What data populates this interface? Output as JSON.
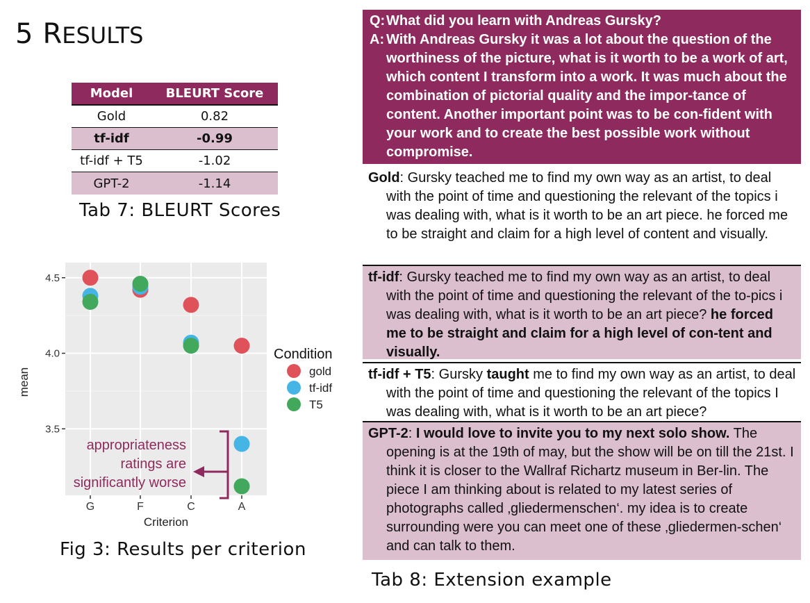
{
  "section": {
    "number": "5",
    "title_first": "R",
    "title_rest": "ESULTS"
  },
  "table7": {
    "headers": [
      "Model",
      "BLEURT Score"
    ],
    "rows": [
      {
        "model": "Gold",
        "score": "0.82"
      },
      {
        "model": "tf-idf",
        "score": "-0.99"
      },
      {
        "model": "tf-idf + T5",
        "score": "-1.02"
      },
      {
        "model": "GPT-2",
        "score": "-1.14"
      }
    ],
    "caption": "Tab 7: BLEURT Scores"
  },
  "figure3": {
    "caption": "Fig 3: Results per criterion",
    "annotation": [
      "appropriateness",
      "ratings are",
      "significantly worse"
    ]
  },
  "chart_data": {
    "type": "scatter",
    "categories": [
      "G",
      "F",
      "C",
      "A"
    ],
    "xlabel": "Criterion",
    "ylabel": "mean",
    "yticks": [
      "3.5",
      "4.0",
      "4.5"
    ],
    "ylim": [
      3.06,
      4.6
    ],
    "legend_title": "Condition",
    "legend_position": "right",
    "grid": true,
    "series": [
      {
        "name": "gold",
        "color": "#e0525a",
        "values": [
          4.5,
          4.42,
          4.32,
          4.05
        ]
      },
      {
        "name": "tf-idf",
        "color": "#45b5e6",
        "values": [
          4.38,
          4.44,
          4.07,
          3.4
        ]
      },
      {
        "name": "T5",
        "color": "#41a85c",
        "values": [
          4.34,
          4.46,
          4.05,
          3.12
        ]
      }
    ]
  },
  "qa": {
    "q_label": "Q:",
    "q_text": "What did you learn with Andreas Gursky?",
    "a_label": "A:",
    "a_text": "With Andreas Gursky it was a lot about the question of the worthiness of the picture, what is it worth to be a work of art, which content I transform into a work. It was much about the combination of pictorial quality and the impor-tance of content. Another important point was to be con-fident with your work and to create the best possible work without compromise."
  },
  "responses": {
    "gold": {
      "label": "Gold",
      "text": ": Gursky teached me to find my own way as an artist, to deal with the point of time and questioning the relevant of the topics i was dealing with, what is it worth to be an art piece. he forced me to be straight and claim for a high level of content and visually."
    },
    "tfidf": {
      "label": "tf-idf",
      "text": ": Gursky teached me to find my own way as an artist, to deal with the point of time and questioning the relevant of the to-pics i was dealing with, what is it worth to be an art piece? ",
      "bold_text": "he forced me to be straight and claim for a high level of con-tent and visually."
    },
    "t5": {
      "label": "tf-idf + T5",
      "text_a": ": Gursky ",
      "bold_word": "taught",
      "text_b": " me to find my own way as an artist, to deal with the point of time and questioning the relevant of the topics I was dealing with, what is it worth to be an art piece?"
    },
    "gpt2": {
      "label": "GPT-2",
      "sep": ": ",
      "bold_text": "I would love to invite you to my next solo show.",
      "text": " The opening is at the 19th of may, but the show will be on till the 21st. I think it is closer to the Wallraf Richartz museum in Ber-lin. The piece I am thinking about is related to my latest series of photographs called ‚gliedermenschen‘. my idea is to create surrounding were you can meet one of these ‚gliedermen-schen‘ and can talk to them."
    }
  },
  "table8": {
    "caption": "Tab 8: Extension example"
  }
}
